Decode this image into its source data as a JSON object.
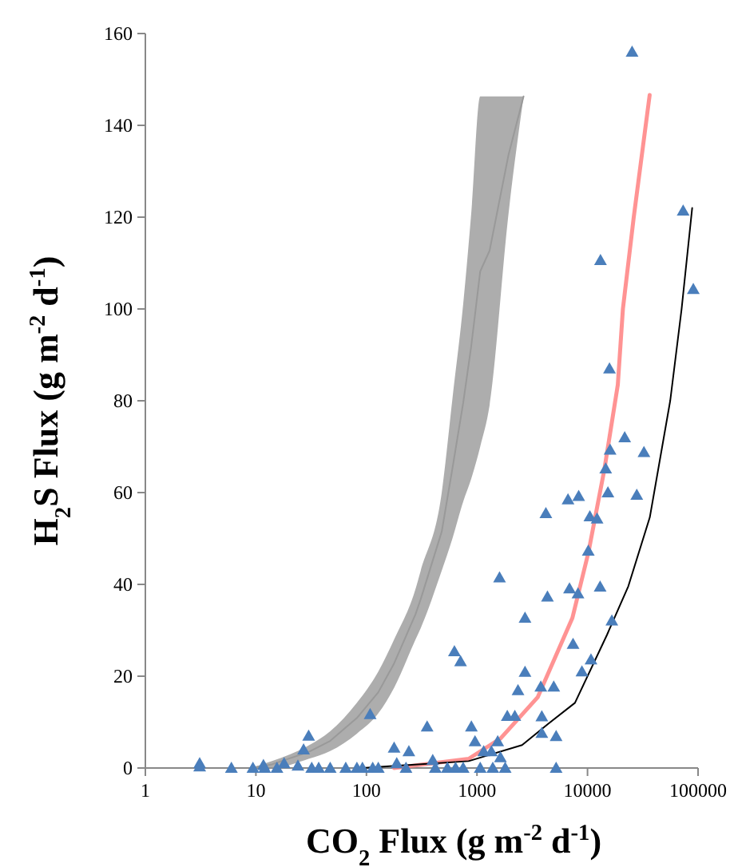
{
  "chart_data": {
    "type": "scatter",
    "xlabel": "CO$_{2}$ Flux (g m$^{-2}$ d$^{-1}$)",
    "ylabel": "H$_{2}$S Flux (g m$^{-2}$ d$^{-1}$)",
    "log": "x",
    "xlim": [
      1,
      100000
    ],
    "xticks": [
      1,
      10,
      100,
      1000,
      10000,
      100000
    ],
    "ylim": [
      0,
      160
    ],
    "yticks": [
      0,
      20,
      40,
      60,
      80,
      100,
      120,
      140,
      160
    ],
    "grid": false,
    "legend": false,
    "series": [
      {
        "type": "line",
        "color": "#999999",
        "x": [
          9,
          14,
          30,
          47,
          82,
          128,
          178,
          278,
          310,
          480,
          600,
          750,
          887,
          1070,
          1300,
          1930,
          2640
        ],
        "values": [
          0,
          0.8,
          3.5,
          5.9,
          10.9,
          16.5,
          22.8,
          33.5,
          36.8,
          51.5,
          65.3,
          79.5,
          91.9,
          108.2,
          112.7,
          133.6,
          146.3
        ],
        "lower": [
          0,
          0,
          2,
          3.7,
          7.5,
          11.9,
          17.5,
          28,
          30.5,
          43,
          50,
          58,
          63,
          70,
          79,
          120.8,
          146.3
        ],
        "upper": [
          0,
          1.5,
          4.9,
          8,
          14.2,
          21,
          28,
          39,
          43,
          60,
          80.5,
          101,
          120.8,
          146.3,
          146.3,
          146.3,
          146.3
        ]
      },
      {
        "type": "line",
        "color": "#ff8080",
        "marker": "none",
        "x": [
          178,
          840,
          1630,
          3540,
          7300,
          10200,
          14200,
          18800,
          20900,
          26200,
          36500
        ],
        "values": [
          0,
          2,
          6.4,
          15.4,
          32.7,
          47,
          65,
          83.5,
          100,
          120,
          146.6
        ]
      },
      {
        "type": "line",
        "color": "#000000",
        "marker": "none",
        "x": [
          92,
          840,
          2560,
          4400,
          7700,
          15000,
          23400,
          36600,
          56000,
          71000,
          88500
        ],
        "values": [
          0,
          1.5,
          5,
          9.6,
          14.2,
          29,
          39.6,
          54.6,
          80,
          100,
          122
        ]
      },
      {
        "marker": "triangle",
        "color": "#4a7ebb",
        "x": [
          3.1,
          3.1,
          6,
          9.4,
          11.7,
          12,
          15.5,
          18,
          24,
          27,
          30,
          32,
          37,
          47,
          65,
          82,
          92,
          108,
          114,
          128,
          178,
          188,
          242,
          228,
          354,
          398,
          420,
          540,
          640,
          750,
          625,
          710,
          890,
          960,
          1150,
          1070,
          1350,
          1390,
          1540,
          1630,
          1800,
          1600,
          1880,
          2200,
          2350,
          2720,
          2720,
          3780,
          3860,
          3860,
          4200,
          4340,
          4950,
          5200,
          5200,
          6660,
          6870,
          7400,
          8200,
          8320,
          8900,
          10160,
          10500,
          10750,
          12200,
          13000,
          14600,
          15300,
          16000,
          16600,
          21700,
          27900,
          32400,
          25300,
          13100,
          15800,
          73300,
          90600
        ],
        "values": [
          1,
          0.3,
          0,
          0,
          0.6,
          0,
          0,
          1,
          0.5,
          4,
          7,
          0,
          0,
          0,
          0,
          0,
          0,
          11.7,
          0,
          0,
          4.4,
          1,
          3.6,
          0,
          9,
          1.7,
          0,
          0,
          0,
          0,
          25.4,
          23.2,
          9,
          5.8,
          3.6,
          0,
          3.6,
          0,
          5.8,
          2.3,
          0,
          41.5,
          11.3,
          11.3,
          16.9,
          20.9,
          32.7,
          17.7,
          11.2,
          7.6,
          55.5,
          37.3,
          17.7,
          6.9,
          0,
          58.5,
          39.1,
          27,
          38,
          59.2,
          21,
          47.3,
          54.8,
          23.6,
          54.3,
          39.5,
          65.2,
          60,
          69.3,
          32.1,
          72,
          59.5,
          68.8,
          156,
          110.6,
          87,
          121.4,
          104.3
        ]
      }
    ]
  }
}
